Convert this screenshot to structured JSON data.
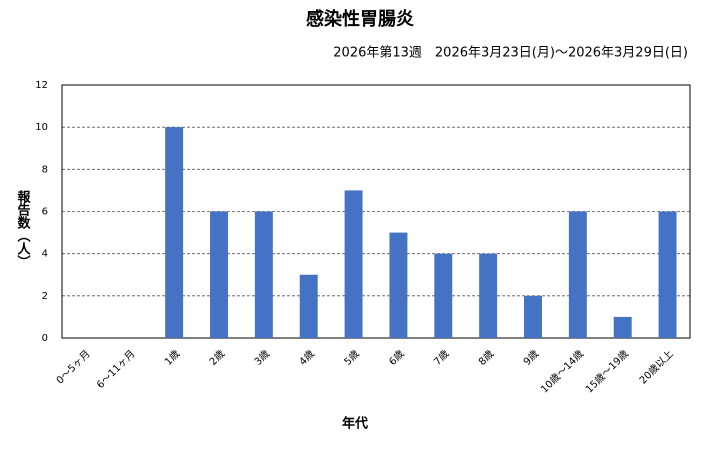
{
  "chart_data": {
    "type": "bar",
    "title": "感染性胃腸炎",
    "subtitle": "2026年第13週　2026年3月23日(月)～2026年3月29日(日)",
    "xlabel": "年代",
    "ylabel": "報告数（人）",
    "categories": [
      "0～5ヶ月",
      "6～11ヶ月",
      "1歳",
      "2歳",
      "3歳",
      "4歳",
      "5歳",
      "6歳",
      "7歳",
      "8歳",
      "9歳",
      "10歳～14歳",
      "15歳～19歳",
      "20歳以上"
    ],
    "values": [
      0,
      0,
      10,
      6,
      6,
      3,
      7,
      5,
      4,
      4,
      2,
      6,
      1,
      6
    ],
    "color": "#4472c4",
    "ylim": [
      0,
      12
    ],
    "yticks": [
      0,
      2,
      4,
      6,
      8,
      10,
      12
    ],
    "grid": true
  }
}
